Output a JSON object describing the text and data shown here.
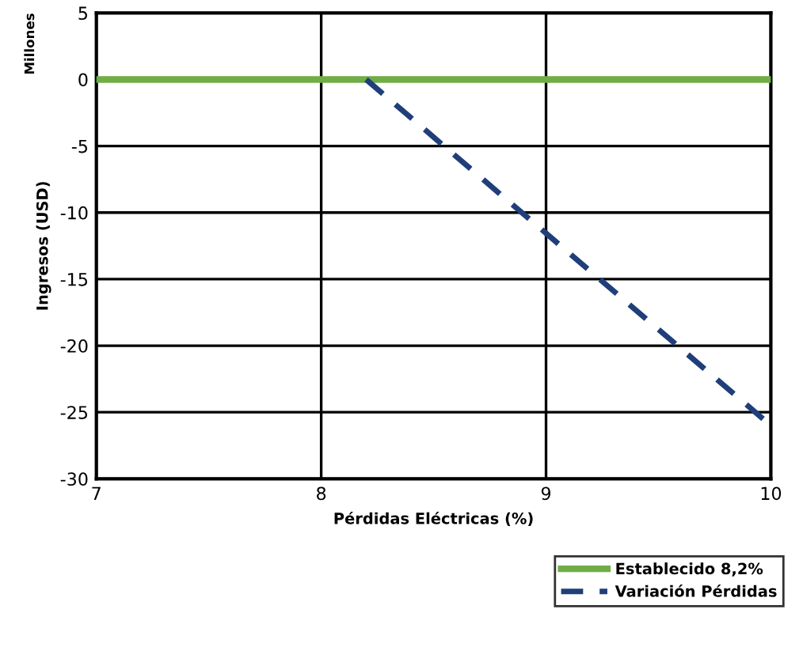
{
  "chart_data": {
    "type": "line",
    "ylabel": "Ingresos (USD)",
    "xlabel": "Pérdidas Eléctricas (%)",
    "annotations": [
      "Millones"
    ],
    "xlim": [
      7,
      10
    ],
    "xticks": [
      7,
      8,
      9,
      10
    ],
    "ylim": [
      -30,
      5
    ],
    "yticks": [
      -30,
      -25,
      -20,
      -15,
      -10,
      -5,
      0,
      5
    ],
    "grid": true,
    "legend": "bottom right",
    "series": [
      {
        "name": "Establecido 8,2%",
        "color": "#70ad47",
        "x": [
          7,
          10
        ],
        "values": [
          0,
          0
        ],
        "line_style": "solid"
      },
      {
        "name": "Variación Pérdidas",
        "color": "#203f7a",
        "x": [
          8.2,
          10
        ],
        "values": [
          0,
          -26
        ],
        "line_style": "dashed"
      }
    ]
  }
}
